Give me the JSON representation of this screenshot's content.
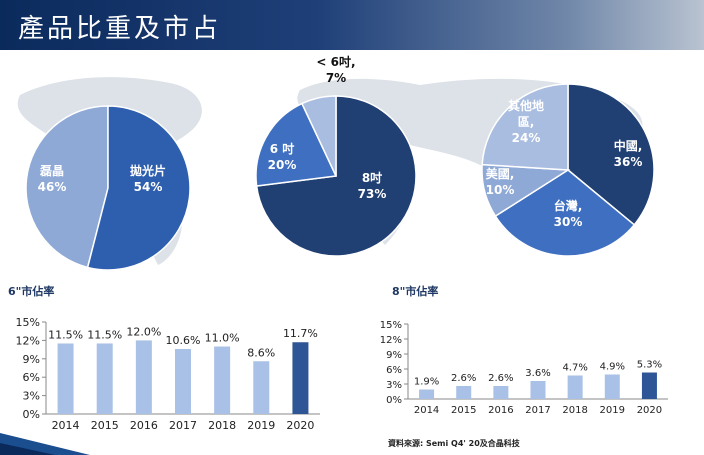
{
  "header": {
    "title": "產品比重及市占"
  },
  "pies": [
    {
      "slices": [
        {
          "label": "磊晶",
          "value": "46%",
          "pct": 46,
          "color": "#8fa9d6"
        },
        {
          "label": "拋光片",
          "value": "54%",
          "pct": 54,
          "color": "#2e5fae"
        }
      ]
    },
    {
      "slices": [
        {
          "label": "8吋",
          "value": "73%",
          "pct": 73,
          "color": "#203f72"
        },
        {
          "label": "6 吋",
          "value": "20%",
          "pct": 20,
          "color": "#3f6fc0"
        },
        {
          "label": "< 6吋,",
          "value": "7%",
          "pct": 7,
          "color": "#a9bde0"
        }
      ]
    },
    {
      "slices": [
        {
          "label": "中國,",
          "value": "36%",
          "pct": 36,
          "color": "#203f72"
        },
        {
          "label": "台灣,",
          "value": "30%",
          "pct": 30,
          "color": "#3f6fc0"
        },
        {
          "label": "美國,",
          "value": "10%",
          "pct": 10,
          "color": "#8fa9d6"
        },
        {
          "label": "其他地",
          "label2": "區,",
          "value": "24%",
          "pct": 24,
          "color": "#a9bde0"
        }
      ]
    }
  ],
  "sections": {
    "left": "6\"市佔率",
    "right": "8\"市佔率"
  },
  "chart_data": [
    {
      "type": "bar",
      "categories": [
        "2014",
        "2015",
        "2016",
        "2017",
        "2018",
        "2019",
        "2020"
      ],
      "values": [
        11.5,
        11.5,
        12.0,
        10.6,
        11.0,
        8.6,
        11.7
      ],
      "data_labels": [
        "11.5%",
        "11.5%",
        "12.0%",
        "10.6%",
        "11.0%",
        "8.6%",
        "11.7%"
      ],
      "yticks": [
        "0%",
        "3%",
        "6%",
        "9%",
        "12%",
        "15%"
      ],
      "ylim": [
        0,
        15
      ],
      "highlight_color": "#2e5596",
      "bar_color": "#a9c1e6"
    },
    {
      "type": "bar",
      "categories": [
        "2014",
        "2015",
        "2016",
        "2017",
        "2018",
        "2019",
        "2020"
      ],
      "values": [
        1.9,
        2.6,
        2.6,
        3.6,
        4.7,
        4.9,
        5.3
      ],
      "data_labels": [
        "1.9%",
        "2.6%",
        "2.6%",
        "3.6%",
        "4.7%",
        "4.9%",
        "5.3%"
      ],
      "yticks": [
        "0%",
        "3%",
        "6%",
        "9%",
        "12%",
        "15%"
      ],
      "ylim": [
        0,
        15
      ],
      "highlight_color": "#2e5596",
      "bar_color": "#a9c1e6"
    }
  ],
  "source": "資料來源: Semi Q4' 20及合晶科技"
}
